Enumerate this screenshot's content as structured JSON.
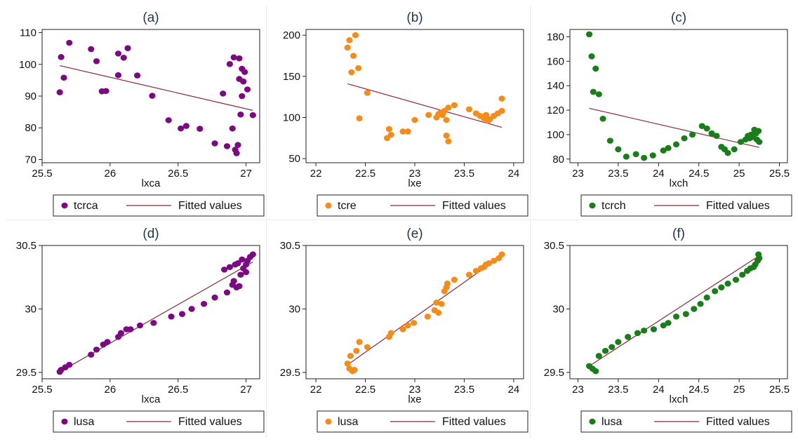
{
  "chart_data": [
    {
      "type": "scatter",
      "title": "(a)",
      "xlabel": "lxca",
      "ylabel": "",
      "xlim": [
        25.5,
        27.1
      ],
      "ylim": [
        69,
        111
      ],
      "xticks": [
        "25.5",
        "26",
        "26.5",
        "27"
      ],
      "yticks": [
        "70",
        "80",
        "90",
        "100",
        "110"
      ],
      "point_color": "#7b0a82",
      "fit_color": "#8b2a36",
      "series": [
        {
          "name": "tcrca",
          "points": [
            [
              25.63,
              91.2
            ],
            [
              25.64,
              102.3
            ],
            [
              25.66,
              95.8
            ],
            [
              25.7,
              106.8
            ],
            [
              25.86,
              104.8
            ],
            [
              25.9,
              101.0
            ],
            [
              25.94,
              91.5
            ],
            [
              25.97,
              91.6
            ],
            [
              26.06,
              103.4
            ],
            [
              26.06,
              96.6
            ],
            [
              26.1,
              102.1
            ],
            [
              26.13,
              105.1
            ],
            [
              26.2,
              96.5
            ],
            [
              26.31,
              90.1
            ],
            [
              26.43,
              82.4
            ],
            [
              26.52,
              79.8
            ],
            [
              26.56,
              80.6
            ],
            [
              26.66,
              79.7
            ],
            [
              26.77,
              75.1
            ],
            [
              26.83,
              90.8
            ],
            [
              26.86,
              74.2
            ],
            [
              26.88,
              100.1
            ],
            [
              26.9,
              79.8
            ],
            [
              26.91,
              102.2
            ],
            [
              26.92,
              73.1
            ],
            [
              26.93,
              72.0
            ],
            [
              26.94,
              74.6
            ],
            [
              26.95,
              95.4
            ],
            [
              26.95,
              101.9
            ],
            [
              26.96,
              84.2
            ],
            [
              26.97,
              90.0
            ],
            [
              26.97,
              98.6
            ],
            [
              26.98,
              94.6
            ],
            [
              26.99,
              97.6
            ],
            [
              27.01,
              92.1
            ],
            [
              27.05,
              84.0
            ]
          ]
        },
        {
          "name": "Fitted values",
          "line": [
            [
              25.63,
              99.6
            ],
            [
              27.05,
              85.5
            ]
          ]
        }
      ]
    },
    {
      "type": "scatter",
      "title": "(b)",
      "xlabel": "lxe",
      "ylabel": "",
      "xlim": [
        21.9,
        24.1
      ],
      "ylim": [
        45,
        207
      ],
      "xticks": [
        "22",
        "22.5",
        "23",
        "23.5",
        "24"
      ],
      "yticks": [
        "50",
        "100",
        "150",
        "200"
      ],
      "point_color": "#f28c1c",
      "fit_color": "#8b2a36",
      "series": [
        {
          "name": "tcre",
          "points": [
            [
              22.32,
              185.0
            ],
            [
              22.34,
              194.0
            ],
            [
              22.36,
              155.0
            ],
            [
              22.38,
              175.0
            ],
            [
              22.4,
              200.0
            ],
            [
              22.43,
              160.0
            ],
            [
              22.44,
              99.0
            ],
            [
              22.52,
              130.0
            ],
            [
              22.72,
              75.0
            ],
            [
              22.74,
              86.0
            ],
            [
              22.76,
              79.0
            ],
            [
              22.88,
              83.0
            ],
            [
              22.93,
              83.0
            ],
            [
              23.0,
              97.0
            ],
            [
              23.14,
              103.0
            ],
            [
              23.22,
              100.0
            ],
            [
              23.24,
              104.0
            ],
            [
              23.26,
              106.0
            ],
            [
              23.28,
              103.0
            ],
            [
              23.3,
              108.0
            ],
            [
              23.32,
              97.0
            ],
            [
              23.32,
              78.0
            ],
            [
              23.34,
              112.0
            ],
            [
              23.34,
              71.0
            ],
            [
              23.4,
              115.0
            ],
            [
              23.55,
              110.0
            ],
            [
              23.62,
              105.0
            ],
            [
              23.66,
              102.0
            ],
            [
              23.7,
              99.0
            ],
            [
              23.72,
              103.0
            ],
            [
              23.74,
              96.0
            ],
            [
              23.76,
              98.0
            ],
            [
              23.8,
              102.0
            ],
            [
              23.84,
              105.0
            ],
            [
              23.88,
              108.0
            ],
            [
              23.88,
              123.0
            ]
          ]
        },
        {
          "name": "Fitted values",
          "line": [
            [
              22.32,
              141.0
            ],
            [
              23.88,
              88.0
            ]
          ]
        }
      ]
    },
    {
      "type": "scatter",
      "title": "(c)",
      "xlabel": "lxch",
      "ylabel": "",
      "xlim": [
        22.9,
        25.6
      ],
      "ylim": [
        77,
        186
      ],
      "xticks": [
        "23",
        "23.5",
        "24",
        "24.5",
        "25",
        "25.5"
      ],
      "yticks": [
        "80",
        "100",
        "120",
        "140",
        "160",
        "180"
      ],
      "point_color": "#1a7d1a",
      "fit_color": "#8b2a36",
      "series": [
        {
          "name": "tcrch",
          "points": [
            [
              23.14,
              182.0
            ],
            [
              23.17,
              164.0
            ],
            [
              23.19,
              135.0
            ],
            [
              23.22,
              154.0
            ],
            [
              23.26,
              133.0
            ],
            [
              23.31,
              113.0
            ],
            [
              23.4,
              95.0
            ],
            [
              23.5,
              88.0
            ],
            [
              23.6,
              82.0
            ],
            [
              23.72,
              84.0
            ],
            [
              23.82,
              81.0
            ],
            [
              23.93,
              83.0
            ],
            [
              24.06,
              87.0
            ],
            [
              24.12,
              89.0
            ],
            [
              24.22,
              92.0
            ],
            [
              24.32,
              97.0
            ],
            [
              24.42,
              100.0
            ],
            [
              24.54,
              107.0
            ],
            [
              24.6,
              105.0
            ],
            [
              24.66,
              101.0
            ],
            [
              24.72,
              99.0
            ],
            [
              24.78,
              90.0
            ],
            [
              24.82,
              88.0
            ],
            [
              24.86,
              85.0
            ],
            [
              24.94,
              88.0
            ],
            [
              25.02,
              94.0
            ],
            [
              25.08,
              96.0
            ],
            [
              25.11,
              99.0
            ],
            [
              25.13,
              97.0
            ],
            [
              25.15,
              100.0
            ],
            [
              25.17,
              98.0
            ],
            [
              25.19,
              104.0
            ],
            [
              25.21,
              101.0
            ],
            [
              25.22,
              96.0
            ],
            [
              25.24,
              103.0
            ],
            [
              25.25,
              94.0
            ]
          ]
        },
        {
          "name": "Fitted values",
          "line": [
            [
              23.14,
              121.5
            ],
            [
              25.25,
              89.5
            ]
          ]
        }
      ]
    },
    {
      "type": "scatter",
      "title": "(d)",
      "xlabel": "lxca",
      "ylabel": "",
      "xlim": [
        25.5,
        27.1
      ],
      "ylim": [
        29.45,
        30.5
      ],
      "xticks": [
        "25.5",
        "26",
        "26.5",
        "27"
      ],
      "yticks": [
        "29.5",
        "30",
        "30.5"
      ],
      "point_color": "#7b0a82",
      "fit_color": "#8b2a36",
      "series": [
        {
          "name": "lusa",
          "points": [
            [
              25.63,
              29.505
            ],
            [
              25.64,
              29.52
            ],
            [
              25.67,
              29.54
            ],
            [
              25.7,
              29.56
            ],
            [
              25.86,
              29.64
            ],
            [
              25.9,
              29.68
            ],
            [
              25.95,
              29.72
            ],
            [
              25.98,
              29.74
            ],
            [
              26.06,
              29.78
            ],
            [
              26.08,
              29.81
            ],
            [
              26.12,
              29.84
            ],
            [
              26.15,
              29.84
            ],
            [
              26.22,
              29.87
            ],
            [
              26.32,
              29.89
            ],
            [
              26.45,
              29.94
            ],
            [
              26.53,
              29.96
            ],
            [
              26.6,
              30.0
            ],
            [
              26.69,
              30.04
            ],
            [
              26.77,
              30.09
            ],
            [
              26.86,
              30.13
            ],
            [
              26.84,
              30.31
            ],
            [
              26.88,
              30.33
            ],
            [
              26.9,
              30.19
            ],
            [
              26.91,
              30.22
            ],
            [
              26.92,
              30.35
            ],
            [
              26.93,
              30.17
            ],
            [
              26.94,
              30.36
            ],
            [
              26.95,
              30.18
            ],
            [
              26.96,
              30.27
            ],
            [
              26.97,
              30.39
            ],
            [
              26.98,
              30.32
            ],
            [
              27.0,
              30.35
            ],
            [
              27.01,
              30.38
            ],
            [
              27.03,
              30.41
            ],
            [
              27.05,
              30.43
            ],
            [
              27.0,
              30.29
            ]
          ]
        },
        {
          "name": "Fitted values",
          "line": [
            [
              25.63,
              29.505
            ],
            [
              27.05,
              30.37
            ]
          ]
        }
      ]
    },
    {
      "type": "scatter",
      "title": "(e)",
      "xlabel": "lxe",
      "ylabel": "",
      "xlim": [
        21.9,
        24.1
      ],
      "ylim": [
        29.45,
        30.5
      ],
      "xticks": [
        "22",
        "22.5",
        "23",
        "23.5",
        "24"
      ],
      "yticks": [
        "29.5",
        "30",
        "30.5"
      ],
      "point_color": "#f28c1c",
      "fit_color": "#8b2a36",
      "series": [
        {
          "name": "lusa",
          "points": [
            [
              22.32,
              29.57
            ],
            [
              22.34,
              29.53
            ],
            [
              22.35,
              29.63
            ],
            [
              22.37,
              29.51
            ],
            [
              22.39,
              29.52
            ],
            [
              22.41,
              29.67
            ],
            [
              22.44,
              29.74
            ],
            [
              22.52,
              29.7
            ],
            [
              22.74,
              29.78
            ],
            [
              22.76,
              29.81
            ],
            [
              22.88,
              29.84
            ],
            [
              22.93,
              29.87
            ],
            [
              22.99,
              29.89
            ],
            [
              23.13,
              29.94
            ],
            [
              23.2,
              29.99
            ],
            [
              23.22,
              30.05
            ],
            [
              23.24,
              29.97
            ],
            [
              23.27,
              30.04
            ],
            [
              23.3,
              30.14
            ],
            [
              23.32,
              30.17
            ],
            [
              23.33,
              30.2
            ],
            [
              23.4,
              30.23
            ],
            [
              23.55,
              30.27
            ],
            [
              23.62,
              30.3
            ],
            [
              23.67,
              30.32
            ],
            [
              23.7,
              30.33
            ],
            [
              23.72,
              30.35
            ],
            [
              23.75,
              30.36
            ],
            [
              23.8,
              30.38
            ],
            [
              23.85,
              30.4
            ],
            [
              23.88,
              30.43
            ]
          ]
        },
        {
          "name": "Fitted values",
          "line": [
            [
              22.32,
              29.56
            ],
            [
              23.88,
              30.42
            ]
          ]
        }
      ]
    },
    {
      "type": "scatter",
      "title": "(f)",
      "xlabel": "lxch",
      "ylabel": "",
      "xlim": [
        22.9,
        25.6
      ],
      "ylim": [
        29.45,
        30.5
      ],
      "xticks": [
        "23",
        "23.5",
        "24",
        "24.5",
        "25",
        "25.5"
      ],
      "yticks": [
        "29.5",
        "30",
        "30.5"
      ],
      "point_color": "#1a7d1a",
      "fit_color": "#8b2a36",
      "series": [
        {
          "name": "lusa",
          "points": [
            [
              23.14,
              29.55
            ],
            [
              23.18,
              29.53
            ],
            [
              23.22,
              29.51
            ],
            [
              23.26,
              29.63
            ],
            [
              23.34,
              29.67
            ],
            [
              23.42,
              29.7
            ],
            [
              23.5,
              29.74
            ],
            [
              23.62,
              29.78
            ],
            [
              23.74,
              29.81
            ],
            [
              23.82,
              29.83
            ],
            [
              23.94,
              29.84
            ],
            [
              24.06,
              29.87
            ],
            [
              24.12,
              29.89
            ],
            [
              24.22,
              29.94
            ],
            [
              24.34,
              29.96
            ],
            [
              24.44,
              30.0
            ],
            [
              24.52,
              30.04
            ],
            [
              24.6,
              30.09
            ],
            [
              24.7,
              30.14
            ],
            [
              24.78,
              30.17
            ],
            [
              24.86,
              30.2
            ],
            [
              24.96,
              30.23
            ],
            [
              25.04,
              30.27
            ],
            [
              25.1,
              30.3
            ],
            [
              25.14,
              30.32
            ],
            [
              25.18,
              30.33
            ],
            [
              25.2,
              30.35
            ],
            [
              25.23,
              30.38
            ],
            [
              25.24,
              30.43
            ],
            [
              25.25,
              30.4
            ]
          ]
        },
        {
          "name": "Fitted values",
          "line": [
            [
              23.14,
              29.55
            ],
            [
              25.25,
              30.42
            ]
          ]
        }
      ]
    }
  ]
}
